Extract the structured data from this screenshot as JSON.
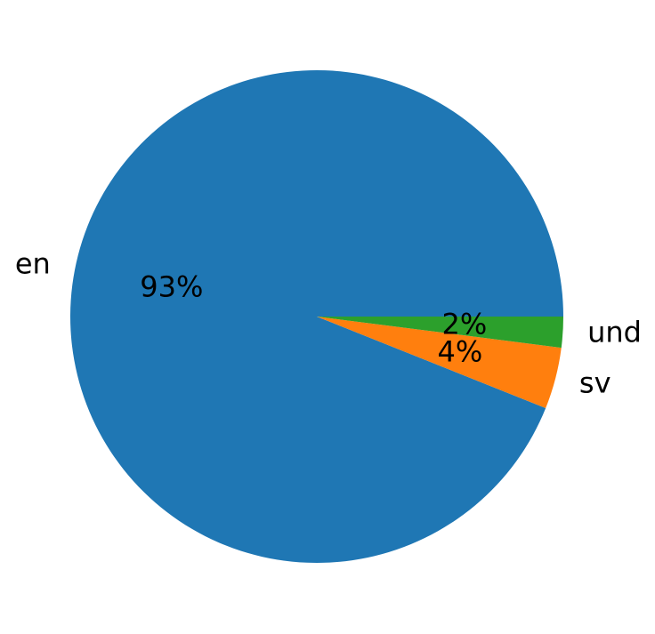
{
  "chart_data": {
    "type": "pie",
    "categories": [
      "en",
      "sv",
      "und"
    ],
    "values": [
      93,
      4,
      2
    ],
    "value_labels": [
      "93%",
      "4%",
      "2%"
    ],
    "colors": [
      "#1f77b4",
      "#ff7f0e",
      "#2ca02c"
    ]
  }
}
